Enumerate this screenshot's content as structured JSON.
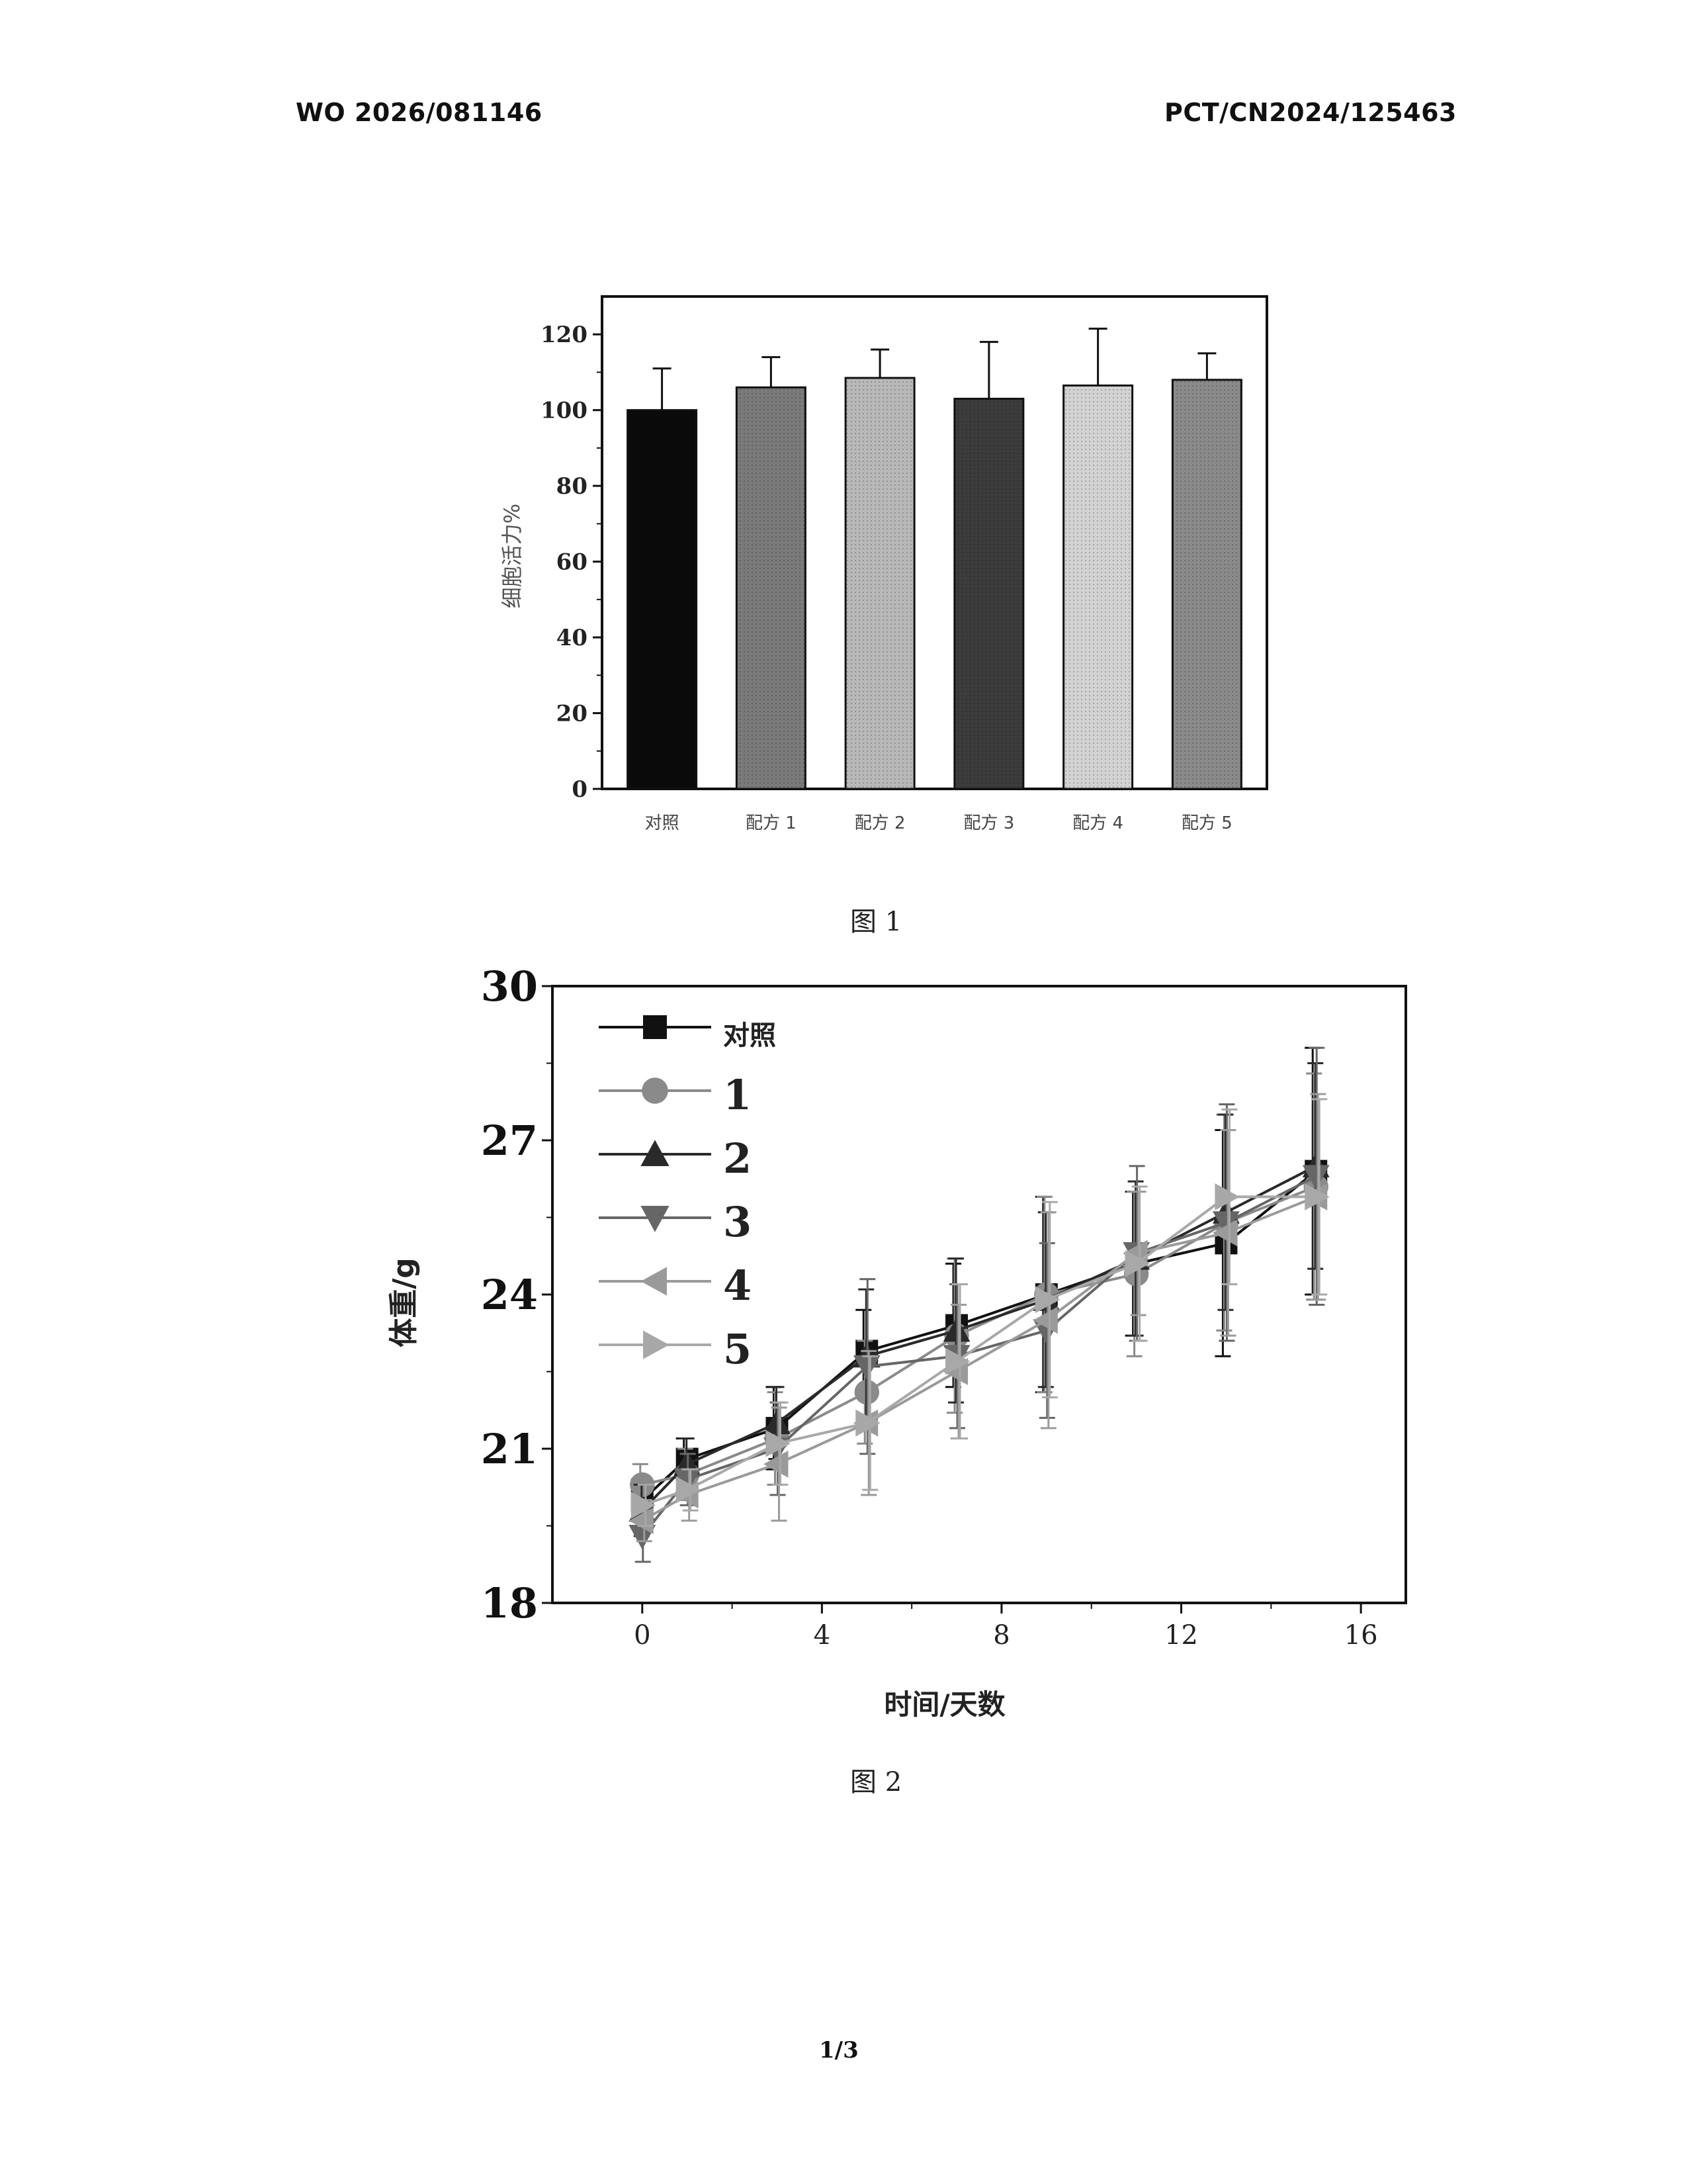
{
  "header": {
    "pub_number": "WO 2026/081146",
    "app_number": "PCT/CN2024/125463"
  },
  "captions": {
    "fig1": "图 1",
    "fig2": "图 2"
  },
  "footer": {
    "page": "1/3"
  },
  "colors": {
    "bar_fills": [
      "#0a0a0a",
      "#7a7a7a",
      "#b8b8b8",
      "#3c3c3c",
      "#d2d2d2",
      "#8a8a8a"
    ],
    "line_series": [
      "#111111",
      "#8a8a8a",
      "#2a2a2a",
      "#666666",
      "#9a9a9a",
      "#a8a8a8"
    ]
  },
  "chart_data": [
    {
      "type": "bar",
      "title": "",
      "xlabel": "",
      "ylabel": "细胞活力%",
      "categories": [
        "对照",
        "配方 1",
        "配方 2",
        "配方 3",
        "配方 4",
        "配方 5"
      ],
      "values": [
        100,
        106,
        108.5,
        103,
        106.5,
        108
      ],
      "error_upper": [
        11,
        8,
        7.5,
        15,
        15,
        7
      ],
      "ylim": [
        0,
        130
      ],
      "yticks": [
        0,
        20,
        40,
        60,
        80,
        100,
        120
      ],
      "grid": false
    },
    {
      "type": "line",
      "title": "",
      "xlabel": "时间/天数",
      "ylabel": "体重/g",
      "xlim": [
        -2,
        17
      ],
      "ylim": [
        18,
        30
      ],
      "xticks": [
        0,
        4,
        8,
        12,
        16
      ],
      "yticks": [
        18,
        21,
        24,
        27,
        30
      ],
      "legend_position": "top-left",
      "grid": false,
      "x": [
        0,
        1,
        3,
        5,
        7,
        9,
        11,
        13,
        15
      ],
      "series": [
        {
          "name": "对照",
          "marker": "square",
          "values": [
            20.0,
            20.8,
            21.4,
            22.9,
            23.4,
            24.0,
            24.6,
            25.0,
            26.4
          ],
          "errors": [
            0.4,
            0.4,
            0.8,
            0.8,
            1.2,
            1.9,
            1.4,
            2.2,
            2.4
          ]
        },
        {
          "name": "1",
          "marker": "circle",
          "values": [
            20.3,
            20.5,
            21.2,
            22.1,
            23.2,
            24.0,
            24.4,
            25.4,
            26.1
          ],
          "errors": [
            0.4,
            0.5,
            0.9,
            1.0,
            1.5,
            1.9,
            1.6,
            2.1,
            2.2
          ]
        },
        {
          "name": "2",
          "marker": "triangle-up",
          "values": [
            19.8,
            20.7,
            21.5,
            22.8,
            23.3,
            23.9,
            24.7,
            25.6,
            26.5
          ],
          "errors": [
            0.5,
            0.5,
            0.7,
            1.3,
            1.4,
            1.7,
            1.5,
            1.9,
            2.0
          ]
        },
        {
          "name": "3",
          "marker": "triangle-down",
          "values": [
            19.3,
            20.4,
            21.0,
            22.6,
            22.8,
            23.3,
            24.8,
            25.4,
            26.3
          ],
          "errors": [
            0.5,
            0.5,
            0.9,
            1.7,
            1.4,
            1.7,
            1.7,
            2.3,
            2.5
          ]
        },
        {
          "name": "4",
          "marker": "triangle-left",
          "values": [
            19.6,
            20.1,
            20.7,
            21.5,
            22.5,
            23.5,
            24.8,
            25.2,
            25.9
          ],
          "errors": [
            0.4,
            0.5,
            1.1,
            1.4,
            1.3,
            2.1,
            1.2,
            2.0,
            2.0
          ]
        },
        {
          "name": "5",
          "marker": "triangle-right",
          "values": [
            19.9,
            20.2,
            21.1,
            21.5,
            22.7,
            23.9,
            24.6,
            25.9,
            25.9
          ],
          "errors": [
            0.4,
            0.4,
            0.8,
            1.3,
            1.5,
            1.9,
            1.5,
            1.7,
            1.9
          ]
        }
      ]
    }
  ]
}
